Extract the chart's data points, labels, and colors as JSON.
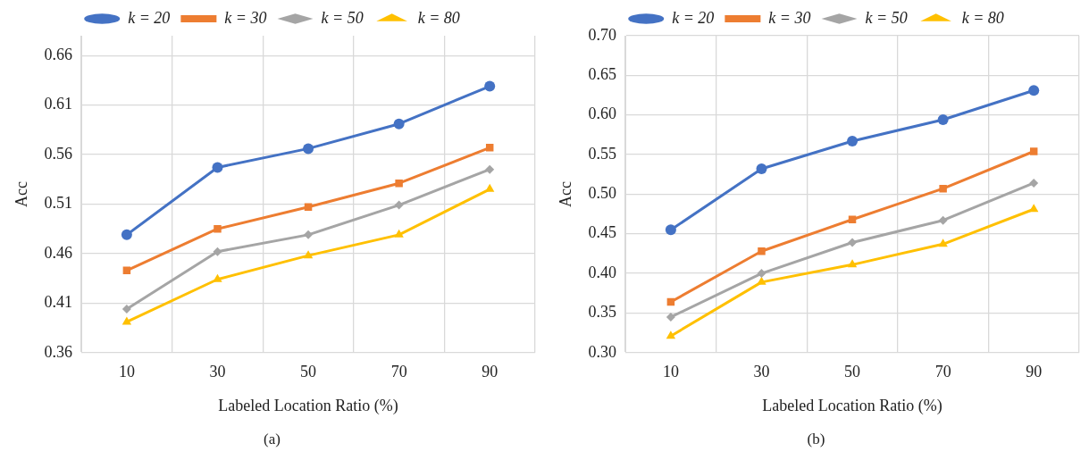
{
  "chart_data": [
    {
      "type": "line",
      "categories": [
        "10",
        "30",
        "50",
        "70",
        "90"
      ],
      "xlabel": "Labeled Location Ratio (%)",
      "ylabel": "Acc",
      "ylim": [
        0.36,
        0.68
      ],
      "yticks": [
        0.36,
        0.41,
        0.46,
        0.51,
        0.56,
        0.61,
        0.66
      ],
      "grid": true,
      "legend": "top",
      "annotations": [
        "(a)"
      ],
      "series": [
        {
          "name": "k = 20",
          "color": "#4472c4",
          "marker": "circle",
          "values": [
            0.479,
            0.547,
            0.566,
            0.591,
            0.629
          ]
        },
        {
          "name": "k = 30",
          "color": "#ed7d31",
          "marker": "square",
          "values": [
            0.443,
            0.485,
            0.507,
            0.531,
            0.567
          ]
        },
        {
          "name": "k = 50",
          "color": "#a5a5a5",
          "marker": "diamond",
          "values": [
            0.404,
            0.462,
            0.479,
            0.509,
            0.545
          ]
        },
        {
          "name": "k = 80",
          "color": "#ffc000",
          "marker": "triangle",
          "values": [
            0.391,
            0.434,
            0.458,
            0.479,
            0.525
          ]
        }
      ]
    },
    {
      "type": "line",
      "categories": [
        "10",
        "30",
        "50",
        "70",
        "90"
      ],
      "xlabel": "Labeled Location Ratio (%)",
      "ylabel": "Acc",
      "ylim": [
        0.3,
        0.7
      ],
      "yticks": [
        {
          "value": 0.3,
          "label": "0.30"
        },
        0.35,
        {
          "value": 0.4,
          "label": "0.40"
        },
        0.45,
        {
          "value": 0.5,
          "label": "0.50"
        },
        0.55,
        {
          "value": 0.6,
          "label": "0.60"
        },
        0.65,
        {
          "value": 0.7,
          "label": "0.70"
        }
      ],
      "grid": true,
      "legend": "top",
      "annotations": [
        "(b)"
      ],
      "series": [
        {
          "name": "k = 20",
          "color": "#4472c4",
          "marker": "circle",
          "values": [
            0.455,
            0.532,
            0.567,
            0.594,
            0.631
          ]
        },
        {
          "name": "k = 30",
          "color": "#ed7d31",
          "marker": "square",
          "values": [
            0.364,
            0.428,
            0.468,
            0.507,
            0.554
          ]
        },
        {
          "name": "k = 50",
          "color": "#a5a5a5",
          "marker": "diamond",
          "values": [
            0.345,
            0.4,
            0.439,
            0.467,
            0.514
          ]
        },
        {
          "name": "k = 80",
          "color": "#ffc000",
          "marker": "triangle",
          "values": [
            0.321,
            0.389,
            0.411,
            0.437,
            0.481
          ]
        }
      ]
    }
  ]
}
